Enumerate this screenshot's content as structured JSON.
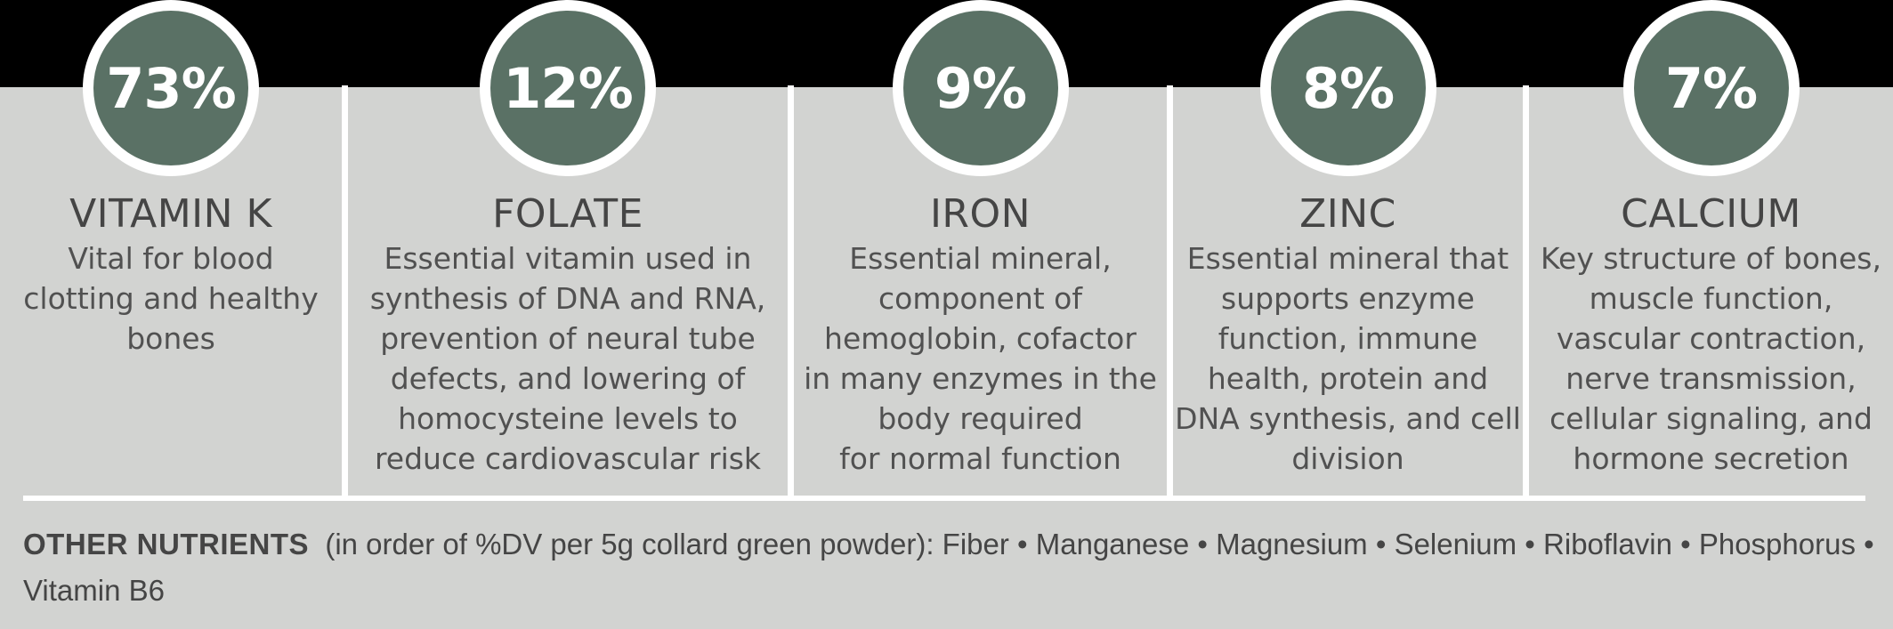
{
  "colors": {
    "top_band": "#000000",
    "panel_background": "#d2d3d1",
    "circle_fill": "#5a7165",
    "circle_ring": "#ffffff",
    "divider": "#ffffff",
    "heading_text": "#454545",
    "body_text": "#515151",
    "percent_text": "#ffffff"
  },
  "nutrients": [
    {
      "percent": "73%",
      "name": "VITAMIN K",
      "description": "Vital for blood\nclotting and healthy\nbones"
    },
    {
      "percent": "12%",
      "name": "FOLATE",
      "description": "Essential vitamin used in\nsynthesis of DNA and RNA,\nprevention of neural tube\ndefects, and lowering of\nhomocysteine levels to\nreduce cardiovascular risk"
    },
    {
      "percent": "9%",
      "name": "IRON",
      "description": "Essential mineral,\ncomponent of\nhemoglobin, cofactor\nin many enzymes in the\nbody required\nfor normal function"
    },
    {
      "percent": "8%",
      "name": "ZINC",
      "description": "Essential mineral that\nsupports enzyme\nfunction, immune\nhealth, protein and\nDNA synthesis, and cell\ndivision"
    },
    {
      "percent": "7%",
      "name": "CALCIUM",
      "description": "Key structure of bones,\nmuscle function,\nvascular contraction,\nnerve transmission,\ncellular signaling, and\nhormone secretion"
    }
  ],
  "footer": {
    "label": "OTHER NUTRIENTS",
    "text": "  (in order of %DV per 5g collard green powder): Fiber • Manganese • Magnesium • Selenium • Riboflavin • Phosphorus •\nVitamin B6"
  },
  "chart_data": {
    "type": "table",
    "title": "Nutrient %DV per 5g collard green powder",
    "categories": [
      "VITAMIN K",
      "FOLATE",
      "IRON",
      "ZINC",
      "CALCIUM"
    ],
    "values": [
      73,
      12,
      9,
      8,
      7
    ],
    "unit": "%DV per 5g collard green powder",
    "other_nutrients_in_order": [
      "Fiber",
      "Manganese",
      "Magnesium",
      "Selenium",
      "Riboflavin",
      "Phosphorus",
      "Vitamin B6"
    ]
  }
}
